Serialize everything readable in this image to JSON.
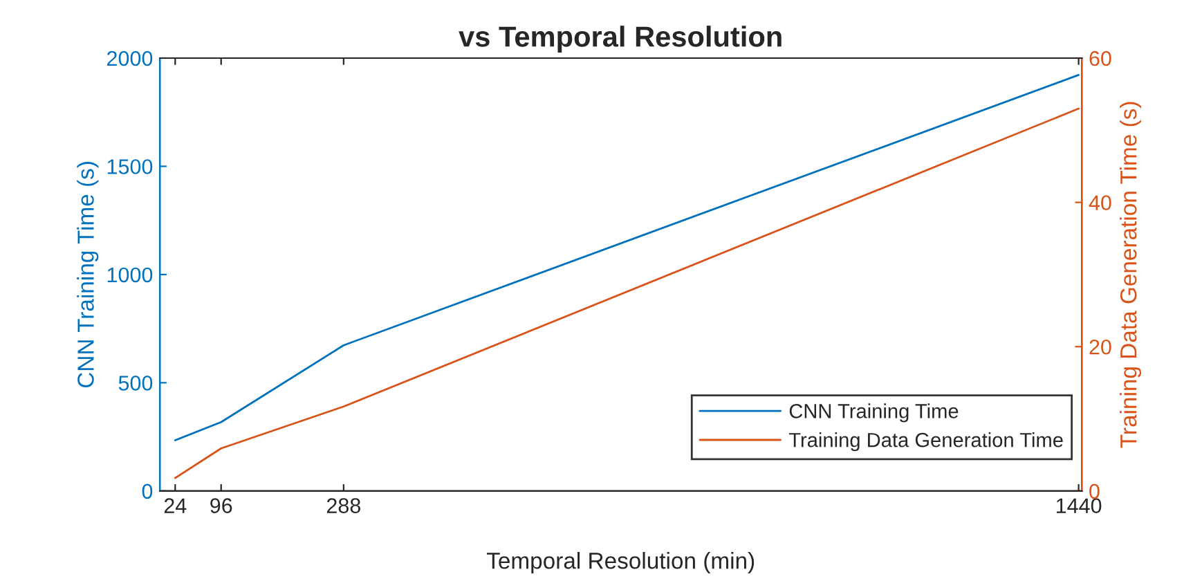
{
  "chart_data": {
    "type": "line",
    "title": "vs Temporal Resolution",
    "x": [
      24,
      96,
      288,
      1440
    ],
    "series": [
      {
        "name": "CNN Training Time",
        "color": "#0072bd",
        "values": [
          234,
          318,
          673,
          1922
        ]
      },
      {
        "name": "Training Data Generation Time",
        "color": "#d95319",
        "axis": "y2",
        "values": [
          1.8,
          5.9,
          11.7,
          53
        ]
      }
    ],
    "xlabel": "Temporal Resolution (min)",
    "ylabel": "CNN Training Time (s)",
    "y2label": "Training Data Generation Time (s)",
    "xlim": [
      0,
      1445
    ],
    "xticks": [
      24,
      96,
      288,
      1440
    ],
    "ylim": [
      0,
      2000
    ],
    "yticks": [
      0,
      500,
      1000,
      1500,
      2000
    ],
    "y2lim": [
      0,
      60
    ],
    "y2ticks": [
      0,
      20,
      40,
      60
    ],
    "legend": "lower right",
    "grid": false,
    "marker": "none",
    "line_style": "solid"
  }
}
